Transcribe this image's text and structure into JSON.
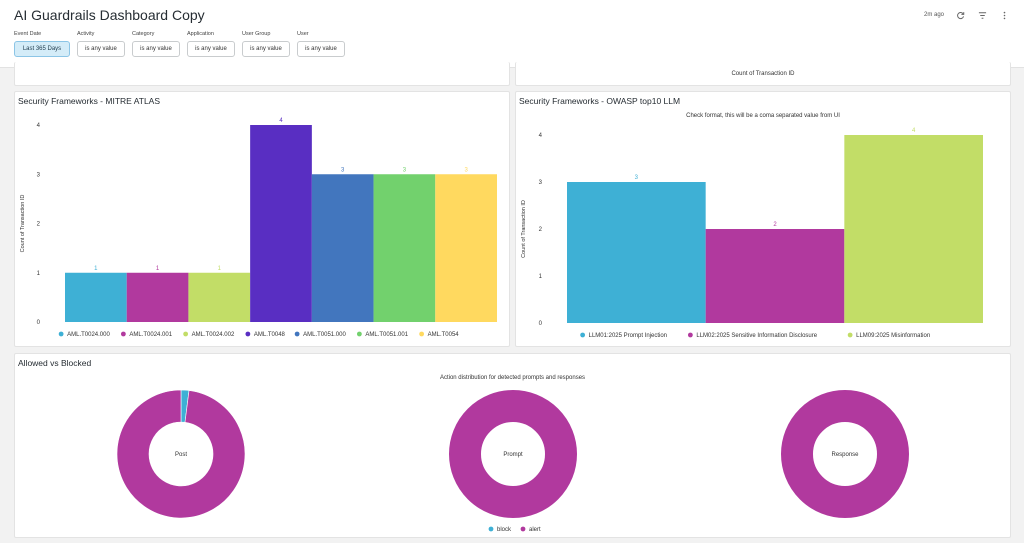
{
  "header": {
    "title": "AI Guardrails Dashboard Copy",
    "updated": "2m ago",
    "refresh_icon": "refresh-icon",
    "filter_icon": "filter-icon",
    "menu_icon": "more-vertical-icon"
  },
  "filters": [
    {
      "label": "Event Date",
      "value": "Last 365 Days"
    },
    {
      "label": "Activity",
      "value": "is any value"
    },
    {
      "label": "Category",
      "value": "is any value"
    },
    {
      "label": "Application",
      "value": "is any value"
    },
    {
      "label": "User Group",
      "value": "is any value"
    },
    {
      "label": "User",
      "value": "is any value"
    }
  ],
  "top_right_tile": {
    "axis_label": "Count of Transaction ID"
  },
  "mitre": {
    "title": "Security Frameworks - MITRE ATLAS",
    "ylabel": "Count of Transaction ID"
  },
  "owasp": {
    "title": "Security Frameworks - OWASP top10 LLM",
    "subtitle": "Check format, this will be a coma separated value from UI",
    "ylabel": "Count of Transaction ID"
  },
  "allowed": {
    "title": "Allowed vs Blocked",
    "subtitle": "Action distribution for detected prompts and responses"
  },
  "chart_data": [
    {
      "type": "bar",
      "title": "Security Frameworks - MITRE ATLAS",
      "ylabel": "Count of Transaction ID",
      "ylim": [
        0,
        4
      ],
      "yticks": [
        0,
        1,
        2,
        3,
        4
      ],
      "grid": false,
      "legend": "bottom",
      "categories": [
        "AML.T0024.000",
        "AML.T0024.001",
        "AML.T0024.002",
        "AML.T0048",
        "AML.T0051.000",
        "AML.T0051.001",
        "AML.T0054"
      ],
      "values": [
        1,
        1,
        1,
        4,
        3,
        3,
        3
      ],
      "colors": [
        "#3eb0d5",
        "#b1399e",
        "#c2dd67",
        "#592ec2",
        "#4276be",
        "#72d16d",
        "#ffd95f"
      ]
    },
    {
      "type": "bar",
      "title": "Security Frameworks - OWASP top10 LLM",
      "subtitle": "Check format, this will be a coma separated value from UI",
      "ylabel": "Count of Transaction ID",
      "ylim": [
        0,
        4
      ],
      "yticks": [
        0,
        1,
        2,
        3,
        4
      ],
      "grid": false,
      "legend": "bottom",
      "categories": [
        "LLM01:2025 Prompt Injection",
        "LLM02:2025 Sensitive Information Disclosure",
        "LLM09:2025 Misinformation"
      ],
      "values": [
        3,
        2,
        4
      ],
      "colors": [
        "#3eb0d5",
        "#b1399e",
        "#c2dd67"
      ]
    },
    {
      "type": "pie",
      "title": "Allowed vs Blocked",
      "subtitle": "Action distribution for detected prompts and responses",
      "legend": "bottom",
      "series_names": [
        "block",
        "alert"
      ],
      "colors": [
        "#3eb0d5",
        "#b1399e"
      ],
      "charts": [
        {
          "label": "Post",
          "values": [
            0.02,
            0.98
          ]
        },
        {
          "label": "Prompt",
          "values": [
            0,
            1
          ]
        },
        {
          "label": "Response",
          "values": [
            0,
            1
          ]
        }
      ]
    }
  ]
}
